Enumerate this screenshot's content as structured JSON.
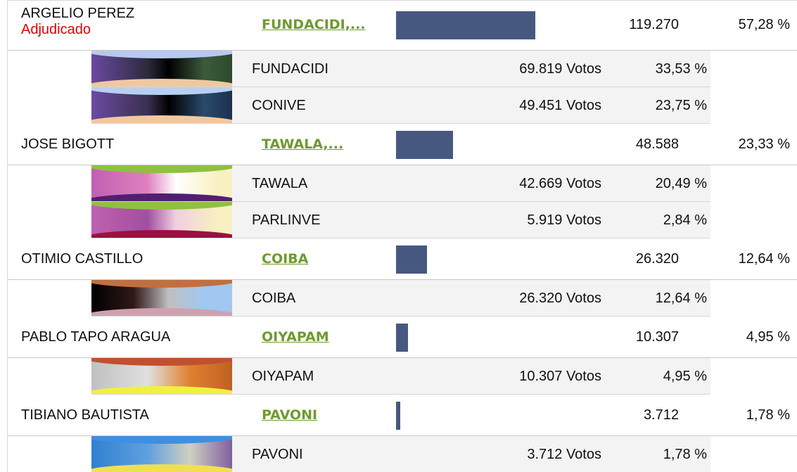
{
  "candidates": [
    {
      "name": "ARGELIO PEREZ",
      "status": "Adjudicado",
      "link": "FUNDACIDI,...",
      "votes": "119.270",
      "percent": {
        "value": 57.28,
        "label": "57,28 %"
      },
      "parties": [
        {
          "name": "FUNDACIDI",
          "votes": "69.819 Votos",
          "percent": "33,53 %"
        },
        {
          "name": "CONIVE",
          "votes": "49.451 Votos",
          "percent": "23,75 %"
        }
      ]
    },
    {
      "name": "JOSE BIGOTT",
      "link": "TAWALA,...",
      "votes": "48.588",
      "percent": {
        "value": 23.33,
        "label": "23,33 %"
      },
      "parties": [
        {
          "name": "TAWALA",
          "votes": "42.669 Votos",
          "percent": "20,49 %"
        },
        {
          "name": "PARLINVE",
          "votes": "5.919 Votos",
          "percent": "2,84 %"
        }
      ]
    },
    {
      "name": "OTIMIO CASTILLO",
      "link": "COIBA",
      "votes": "26.320",
      "percent": {
        "value": 12.64,
        "label": "12,64 %"
      },
      "parties": [
        {
          "name": "COIBA",
          "votes": "26.320 Votos",
          "percent": "12,64 %"
        }
      ]
    },
    {
      "name": "PABLO TAPO ARAGUA",
      "link": "OIYAPAM",
      "votes": "10.307",
      "percent": {
        "value": 4.95,
        "label": "4,95 %"
      },
      "parties": [
        {
          "name": "OIYAPAM",
          "votes": "10.307 Votos",
          "percent": "4,95 %"
        }
      ]
    },
    {
      "name": "TIBIANO BAUTISTA",
      "link": "PAVONI",
      "votes": "3.712",
      "percent": {
        "value": 1.78,
        "label": "1,78 %"
      },
      "parties": [
        {
          "name": "PAVONI",
          "votes": "3.712 Votos",
          "percent": "1,78 %"
        }
      ]
    }
  ]
}
